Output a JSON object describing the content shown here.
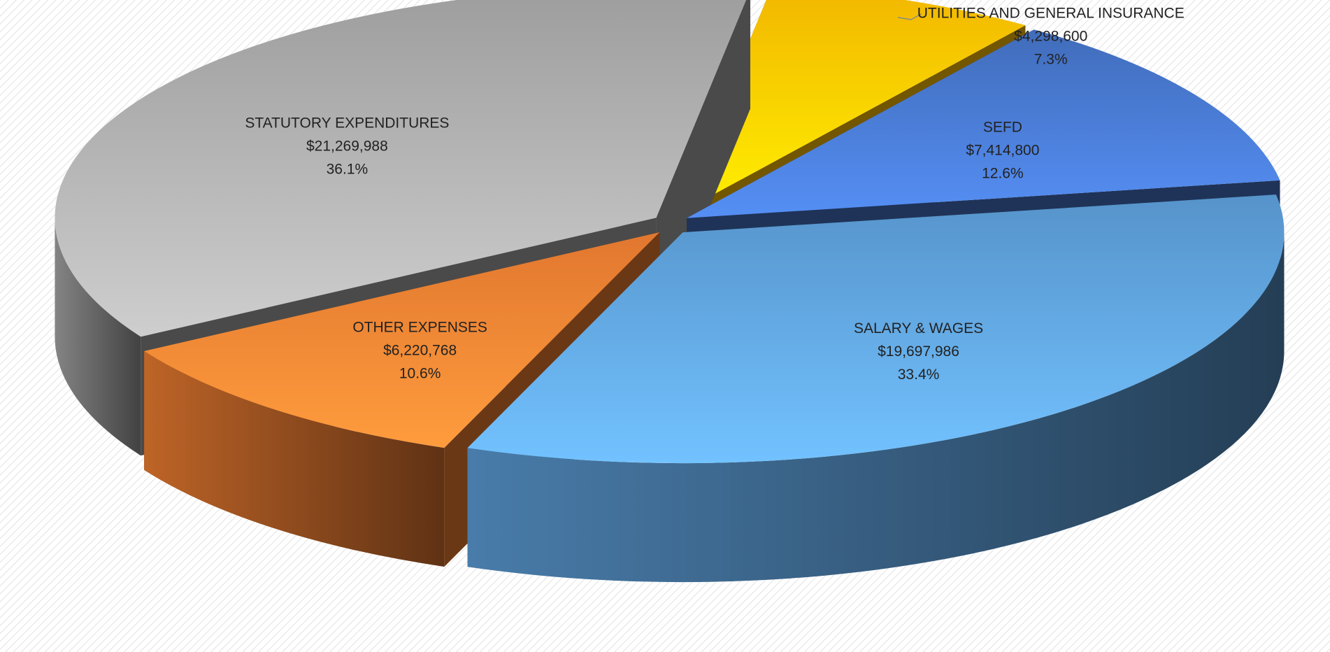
{
  "chart_data": {
    "type": "pie3d",
    "categories": [
      "UTILITIES AND GENERAL INSURANCE",
      "SEFD",
      "SALARY & WAGES",
      "OTHER EXPENSES",
      "STATUTORY EXPENDITURES"
    ],
    "values": [
      4298600,
      7414800,
      19697986,
      6220768,
      21269988
    ],
    "value_labels": [
      "$4,298,600",
      "$7,414,800",
      "$19,697,986",
      "$6,220,768",
      "$21,269,988"
    ],
    "percentages": [
      7.3,
      12.6,
      33.4,
      10.6,
      36.1
    ],
    "percentage_labels": [
      "7.3%",
      "12.6%",
      "33.4%",
      "10.6%",
      "36.1%"
    ],
    "colors": [
      "#ffc000",
      "#4472c4",
      "#5b9bd5",
      "#ed7d31",
      "#a5a5a5"
    ]
  }
}
